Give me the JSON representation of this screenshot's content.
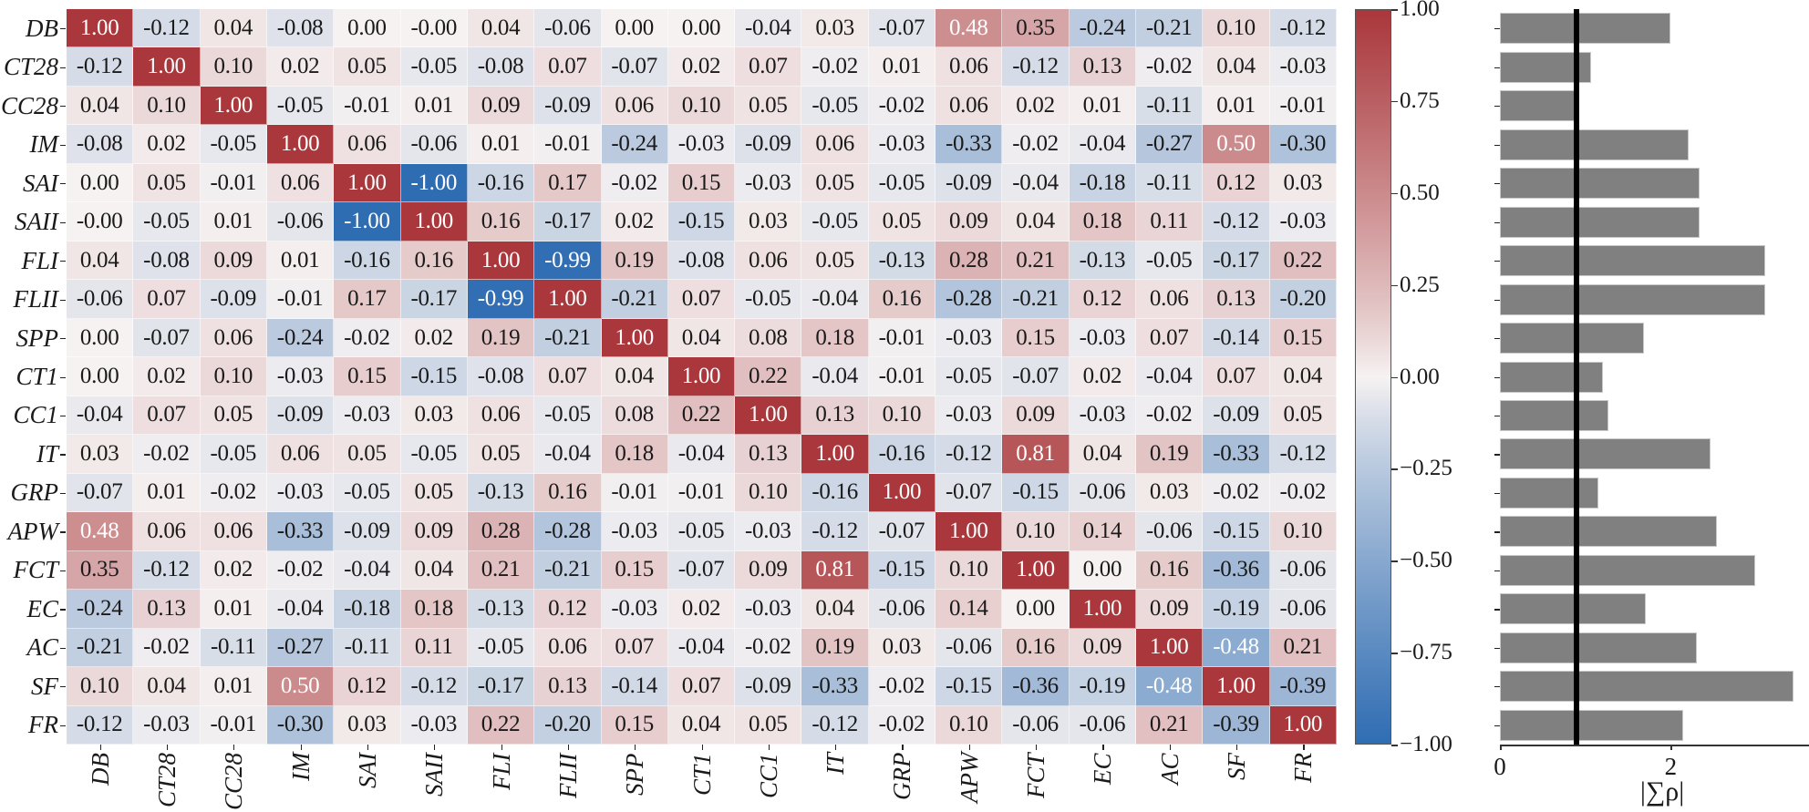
{
  "chart_data": [
    {
      "type": "heatmap",
      "title": "",
      "labels": [
        "DB",
        "CT28",
        "CC28",
        "IM",
        "SAI",
        "SAII",
        "FLI",
        "FLII",
        "SPP",
        "CT1",
        "CC1",
        "IT",
        "GRP",
        "APW",
        "FCT",
        "EC",
        "AC",
        "SF",
        "FR"
      ],
      "matrix": [
        [
          1.0,
          -0.12,
          0.04,
          -0.08,
          0.0,
          -0.0,
          0.04,
          -0.06,
          0.0,
          0.0,
          -0.04,
          0.03,
          -0.07,
          0.48,
          0.35,
          -0.24,
          -0.21,
          0.1,
          -0.12
        ],
        [
          -0.12,
          1.0,
          0.1,
          0.02,
          0.05,
          -0.05,
          -0.08,
          0.07,
          -0.07,
          0.02,
          0.07,
          -0.02,
          0.01,
          0.06,
          -0.12,
          0.13,
          -0.02,
          0.04,
          -0.03
        ],
        [
          0.04,
          0.1,
          1.0,
          -0.05,
          -0.01,
          0.01,
          0.09,
          -0.09,
          0.06,
          0.1,
          0.05,
          -0.05,
          -0.02,
          0.06,
          0.02,
          0.01,
          -0.11,
          0.01,
          -0.01
        ],
        [
          -0.08,
          0.02,
          -0.05,
          1.0,
          0.06,
          -0.06,
          0.01,
          -0.01,
          -0.24,
          -0.03,
          -0.09,
          0.06,
          -0.03,
          -0.33,
          -0.02,
          -0.04,
          -0.27,
          0.5,
          -0.3
        ],
        [
          0.0,
          0.05,
          -0.01,
          0.06,
          1.0,
          -1.0,
          -0.16,
          0.17,
          -0.02,
          0.15,
          -0.03,
          0.05,
          -0.05,
          -0.09,
          -0.04,
          -0.18,
          -0.11,
          0.12,
          0.03
        ],
        [
          -0.0,
          -0.05,
          0.01,
          -0.06,
          -1.0,
          1.0,
          0.16,
          -0.17,
          0.02,
          -0.15,
          0.03,
          -0.05,
          0.05,
          0.09,
          0.04,
          0.18,
          0.11,
          -0.12,
          -0.03
        ],
        [
          0.04,
          -0.08,
          0.09,
          0.01,
          -0.16,
          0.16,
          1.0,
          -0.99,
          0.19,
          -0.08,
          0.06,
          0.05,
          -0.13,
          0.28,
          0.21,
          -0.13,
          -0.05,
          -0.17,
          0.22
        ],
        [
          -0.06,
          0.07,
          -0.09,
          -0.01,
          0.17,
          -0.17,
          -0.99,
          1.0,
          -0.21,
          0.07,
          -0.05,
          -0.04,
          0.16,
          -0.28,
          -0.21,
          0.12,
          0.06,
          0.13,
          -0.2
        ],
        [
          0.0,
          -0.07,
          0.06,
          -0.24,
          -0.02,
          0.02,
          0.19,
          -0.21,
          1.0,
          0.04,
          0.08,
          0.18,
          -0.01,
          -0.03,
          0.15,
          -0.03,
          0.07,
          -0.14,
          0.15
        ],
        [
          0.0,
          0.02,
          0.1,
          -0.03,
          0.15,
          -0.15,
          -0.08,
          0.07,
          0.04,
          1.0,
          0.22,
          -0.04,
          -0.01,
          -0.05,
          -0.07,
          0.02,
          -0.04,
          0.07,
          0.04
        ],
        [
          -0.04,
          0.07,
          0.05,
          -0.09,
          -0.03,
          0.03,
          0.06,
          -0.05,
          0.08,
          0.22,
          1.0,
          0.13,
          0.1,
          -0.03,
          0.09,
          -0.03,
          -0.02,
          -0.09,
          0.05
        ],
        [
          0.03,
          -0.02,
          -0.05,
          0.06,
          0.05,
          -0.05,
          0.05,
          -0.04,
          0.18,
          -0.04,
          0.13,
          1.0,
          -0.16,
          -0.12,
          0.81,
          0.04,
          0.19,
          -0.33,
          -0.12
        ],
        [
          -0.07,
          0.01,
          -0.02,
          -0.03,
          -0.05,
          0.05,
          -0.13,
          0.16,
          -0.01,
          -0.01,
          0.1,
          -0.16,
          1.0,
          -0.07,
          -0.15,
          -0.06,
          0.03,
          -0.02,
          -0.02
        ],
        [
          0.48,
          0.06,
          0.06,
          -0.33,
          -0.09,
          0.09,
          0.28,
          -0.28,
          -0.03,
          -0.05,
          -0.03,
          -0.12,
          -0.07,
          1.0,
          0.1,
          0.14,
          -0.06,
          -0.15,
          0.1
        ],
        [
          0.35,
          -0.12,
          0.02,
          -0.02,
          -0.04,
          0.04,
          0.21,
          -0.21,
          0.15,
          -0.07,
          0.09,
          0.81,
          -0.15,
          0.1,
          1.0,
          0.0,
          0.16,
          -0.36,
          -0.06
        ],
        [
          -0.24,
          0.13,
          0.01,
          -0.04,
          -0.18,
          0.18,
          -0.13,
          0.12,
          -0.03,
          0.02,
          -0.03,
          0.04,
          -0.06,
          0.14,
          0.0,
          1.0,
          0.09,
          -0.19,
          -0.06
        ],
        [
          -0.21,
          -0.02,
          -0.11,
          -0.27,
          -0.11,
          0.11,
          -0.05,
          0.06,
          0.07,
          -0.04,
          -0.02,
          0.19,
          0.03,
          -0.06,
          0.16,
          0.09,
          1.0,
          -0.48,
          0.21
        ],
        [
          0.1,
          0.04,
          0.01,
          0.5,
          0.12,
          -0.12,
          -0.17,
          0.13,
          -0.14,
          0.07,
          -0.09,
          -0.33,
          -0.02,
          -0.15,
          -0.36,
          -0.19,
          -0.48,
          1.0,
          -0.39
        ],
        [
          -0.12,
          -0.03,
          -0.01,
          -0.3,
          0.03,
          -0.03,
          0.22,
          -0.2,
          0.15,
          0.04,
          0.05,
          -0.12,
          -0.02,
          0.1,
          -0.06,
          -0.06,
          0.21,
          -0.39,
          1.0
        ]
      ],
      "display_overrides": {
        "0,5": "-0.00",
        "5,0": "-0.00"
      },
      "value_format": "2 decimals",
      "colormap": {
        "min": -1.0,
        "max": 1.0,
        "low": "#2f6db3",
        "mid": "#f6f2f2",
        "high": "#a9373b"
      },
      "colorbar": {
        "ticks": [
          1.0,
          0.75,
          0.5,
          0.25,
          0.0,
          -0.25,
          -0.5,
          -0.75,
          -1.0
        ],
        "tick_labels": [
          "1.00",
          "0.75",
          "0.50",
          "0.25",
          "0.00",
          "−0.25",
          "−0.50",
          "−0.75",
          "−1.00"
        ]
      }
    },
    {
      "type": "bar",
      "orientation": "horizontal",
      "categories": [
        "DB",
        "CT28",
        "CC28",
        "IM",
        "SAI",
        "SAII",
        "FLI",
        "FLII",
        "SPP",
        "CT1",
        "CC1",
        "IT",
        "GRP",
        "APW",
        "FCT",
        "EC",
        "AC",
        "SF",
        "FR"
      ],
      "values": [
        2.0,
        1.07,
        0.87,
        2.21,
        2.34,
        2.34,
        3.11,
        3.11,
        1.69,
        1.21,
        1.27,
        2.47,
        1.15,
        2.54,
        2.99,
        1.71,
        2.3,
        3.44,
        2.15
      ],
      "xlabel": "|∑ρ|",
      "ylabel": "",
      "xlim": [
        0,
        3.6
      ],
      "x_ticks": [
        0,
        2
      ],
      "x_tick_labels": [
        "0",
        "2"
      ],
      "reference_line": 0.9,
      "bar_color": "#808080",
      "reference_line_color": "#000000"
    }
  ]
}
